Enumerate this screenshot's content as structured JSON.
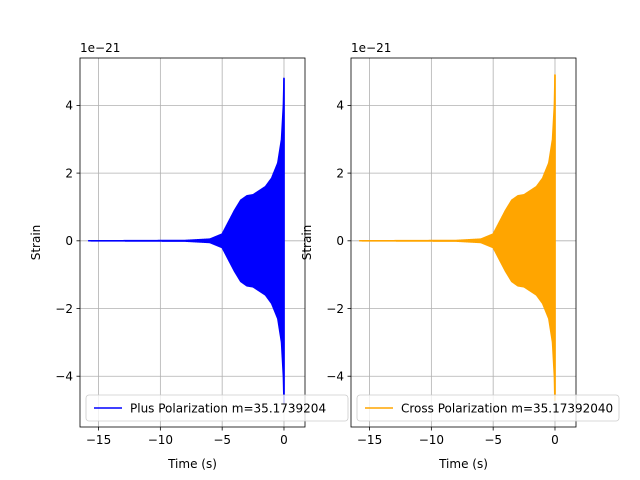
{
  "chart_data": [
    {
      "type": "line",
      "title": "",
      "xlabel": "Time (s)",
      "ylabel": "Strain",
      "offset_text": "1e−21",
      "xlim": [
        -16.5,
        1.7
      ],
      "ylim": [
        -5.5,
        5.4
      ],
      "xticks": [
        -15,
        -10,
        -5,
        0
      ],
      "xtick_labels": [
        "−15",
        "−10",
        "−5",
        "0"
      ],
      "yticks": [
        -4,
        -2,
        0,
        2,
        4
      ],
      "ytick_labels": [
        "−4",
        "−2",
        "0",
        "2",
        "4"
      ],
      "grid": true,
      "legend": "lower-left",
      "series": [
        {
          "name": "Plus Polarization m=35.1739204",
          "color": "#0000ff",
          "t_start": -15.8,
          "t_end": 0.0,
          "envelope": [
            [
              -15.8,
              0.0
            ],
            [
              -8.0,
              0.01
            ],
            [
              -6.0,
              0.05
            ],
            [
              -5.0,
              0.2
            ],
            [
              -4.5,
              0.55
            ],
            [
              -4.0,
              0.9
            ],
            [
              -3.5,
              1.2
            ],
            [
              -3.0,
              1.33
            ],
            [
              -2.5,
              1.36
            ],
            [
              -2.0,
              1.48
            ],
            [
              -1.5,
              1.6
            ],
            [
              -1.0,
              1.85
            ],
            [
              -0.5,
              2.3
            ],
            [
              -0.2,
              3.0
            ],
            [
              -0.05,
              4.0
            ],
            [
              0.0,
              4.8
            ]
          ],
          "negative_extreme": -4.8
        }
      ]
    },
    {
      "type": "line",
      "title": "",
      "xlabel": "Time (s)",
      "ylabel": "Strain",
      "offset_text": "1e−21",
      "xlim": [
        -16.5,
        1.7
      ],
      "ylim": [
        -5.5,
        5.4
      ],
      "xticks": [
        -15,
        -10,
        -5,
        0
      ],
      "xtick_labels": [
        "−15",
        "−10",
        "−5",
        "0"
      ],
      "yticks": [
        -4,
        -2,
        0,
        2,
        4
      ],
      "ytick_labels": [
        "−4",
        "−2",
        "0",
        "2",
        "4"
      ],
      "grid": true,
      "legend": "lower-left",
      "series": [
        {
          "name": "Cross Polarization m=35.17392040",
          "color": "#ffa500",
          "t_start": -15.8,
          "t_end": 0.0,
          "envelope": [
            [
              -15.8,
              0.0
            ],
            [
              -8.0,
              0.01
            ],
            [
              -6.0,
              0.05
            ],
            [
              -5.0,
              0.2
            ],
            [
              -4.5,
              0.55
            ],
            [
              -4.0,
              0.9
            ],
            [
              -3.5,
              1.2
            ],
            [
              -3.0,
              1.33
            ],
            [
              -2.5,
              1.36
            ],
            [
              -2.0,
              1.48
            ],
            [
              -1.5,
              1.6
            ],
            [
              -1.0,
              1.85
            ],
            [
              -0.5,
              2.3
            ],
            [
              -0.2,
              3.0
            ],
            [
              -0.05,
              4.0
            ],
            [
              0.0,
              4.9
            ]
          ],
          "negative_extreme": -4.7
        }
      ]
    }
  ]
}
